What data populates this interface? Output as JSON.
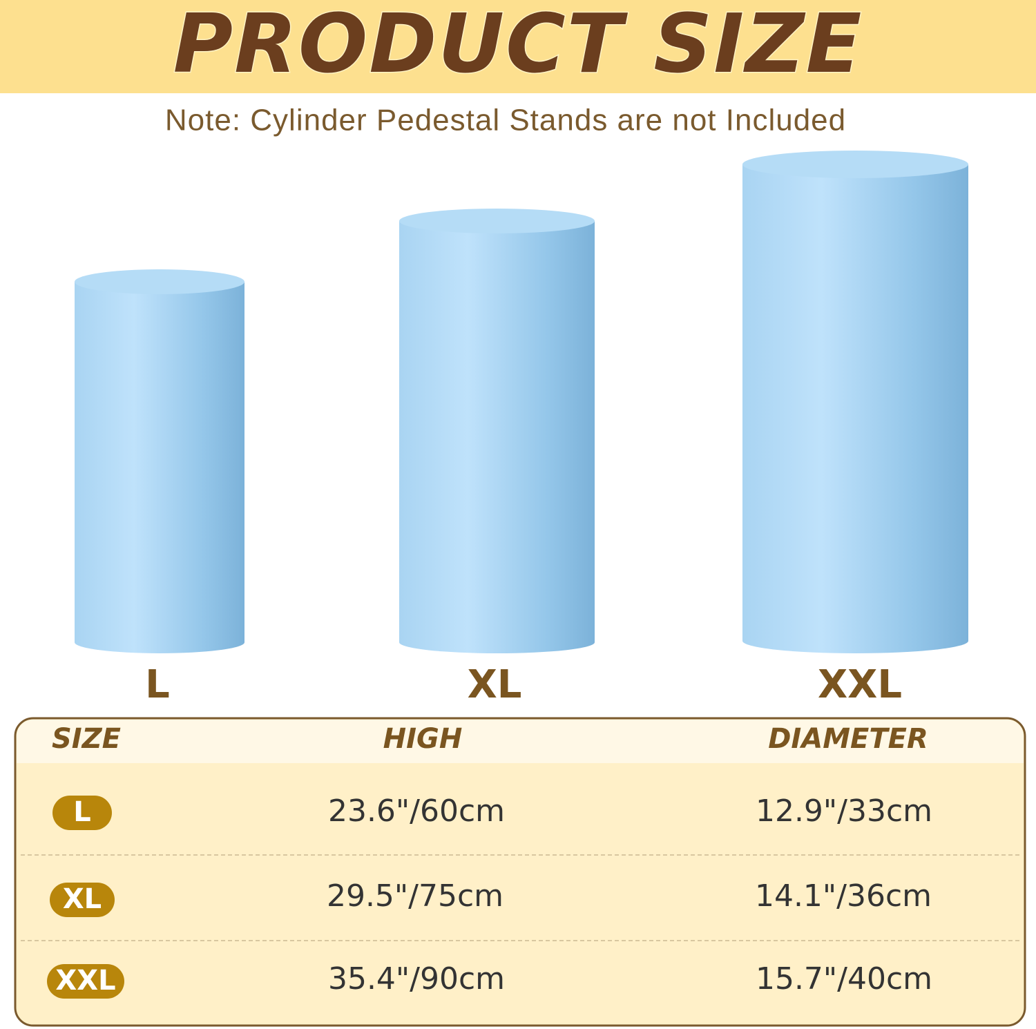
{
  "header": {
    "title": "PRODUCT SIZE",
    "note": "Note: Cylinder Pedestal Stands are not Included"
  },
  "products": [
    {
      "label": "L"
    },
    {
      "label": "XL"
    },
    {
      "label": "XXL"
    }
  ],
  "table": {
    "headers": [
      "SIZE",
      "HIGH",
      "DIAMETER"
    ],
    "rows": [
      [
        "L",
        "23.6\"/60cm",
        "12.9\"/33cm"
      ],
      [
        "XL",
        "29.5\"/75cm",
        "14.1\"/36cm"
      ],
      [
        "XXL",
        "35.4\"/90cm",
        "15.7\"/40cm"
      ]
    ]
  }
}
